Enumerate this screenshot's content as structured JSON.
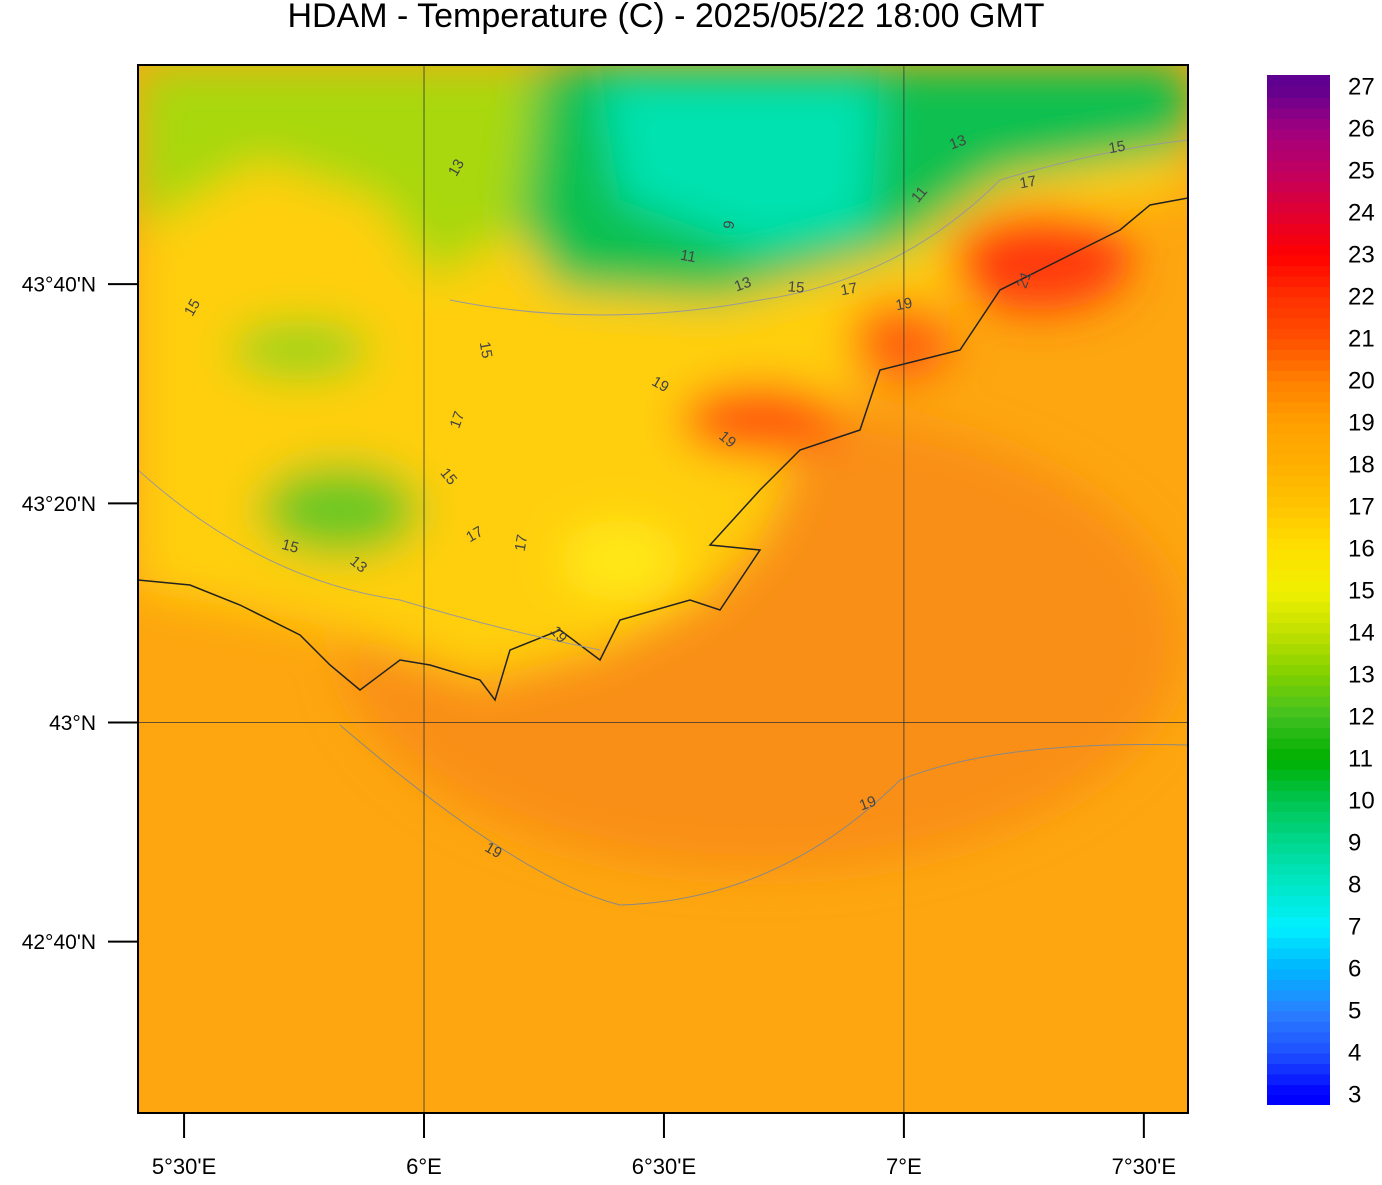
{
  "map": {
    "title": "HDAM - Temperature (C)  -  2025/05/22  18:00 GMT",
    "xlim": [
      5.404,
      7.592
    ],
    "ylim": [
      42.406,
      44.0
    ],
    "xticks": [
      {
        "value": 5.5,
        "label": "5°30'E"
      },
      {
        "value": 6,
        "label": "6°E"
      },
      {
        "value": 6.5,
        "label": "6°30'E"
      },
      {
        "value": 7,
        "label": "7°E"
      },
      {
        "value": 7.5,
        "label": "7°30'E"
      }
    ],
    "yticks": [
      {
        "value": 43.6667,
        "label": "43°40'N"
      },
      {
        "value": 43.3333,
        "label": "43°20'N"
      },
      {
        "value": 43,
        "label": "43°N"
      },
      {
        "value": 42.6667,
        "label": "42°40'N"
      }
    ],
    "colorbar": {
      "clim": [
        3,
        27
      ],
      "ticks": [
        3,
        4,
        5,
        6,
        7,
        8,
        9,
        10,
        11,
        12,
        13,
        14,
        15,
        16,
        17,
        18,
        19,
        20,
        21,
        22,
        23,
        24,
        25,
        26,
        27
      ],
      "colors": [
        "#0000ff",
        "#1e50ff",
        "#2a80ff",
        "#00b4ff",
        "#00f0ff",
        "#00e8c8",
        "#00d890",
        "#00c450",
        "#00b000",
        "#40c020",
        "#80d000",
        "#c0e000",
        "#f0f000",
        "#ffe000",
        "#ffc400",
        "#ffb000",
        "#ffa000",
        "#ff8000",
        "#ff5000",
        "#ff3000",
        "#ff0000",
        "#e00030",
        "#c00060",
        "#a00080",
        "#600090"
      ]
    },
    "contour_labels": [
      13,
      13,
      15,
      17,
      11,
      9,
      11,
      13,
      15,
      17,
      19,
      21,
      15,
      15,
      19,
      19,
      17,
      15,
      17,
      17,
      15,
      13,
      19,
      19,
      19
    ]
  }
}
